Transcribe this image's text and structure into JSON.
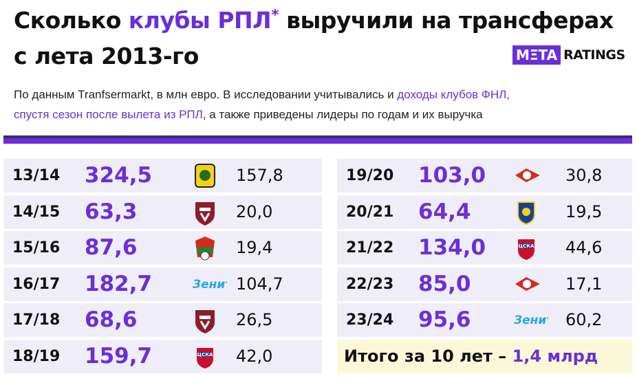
{
  "header": {
    "title_before": "Сколько ",
    "title_highlight": "клубы РПЛ",
    "title_mark": "*",
    "title_after": " выручили на трансферах",
    "title_line2": "с лета 2013-го",
    "brand_a": "MΞTA",
    "brand_b": "RATINGS"
  },
  "subtitle": {
    "before": "По данным Tranfsermarkt, в млн евро. В исследовании учитывались и ",
    "highlight_1": "доходы клубов ФНЛ,",
    "highlight_2": "спустя сезон после вылета из РПЛ",
    "after": ", а также приведены лидеры по годам и их выручка"
  },
  "table": {
    "rows": [
      {
        "season": "13/14",
        "total": "324,5",
        "leader": "157,8"
      },
      {
        "season": "14/15",
        "total": "63,3",
        "leader": "20,0"
      },
      {
        "season": "15/16",
        "total": "87,6",
        "leader": "19,4"
      },
      {
        "season": "16/17",
        "total": "182,7",
        "leader": "104,7"
      },
      {
        "season": "17/18",
        "total": "68,6",
        "leader": "26,5"
      },
      {
        "season": "18/19",
        "total": "159,7",
        "leader": "42,0"
      },
      {
        "season": "19/20",
        "total": "103,0",
        "leader": "30,8"
      },
      {
        "season": "20/21",
        "total": "64,4",
        "leader": "19,5"
      },
      {
        "season": "21/22",
        "total": "134,0",
        "leader": "44,6"
      },
      {
        "season": "22/23",
        "total": "85,0",
        "leader": "17,1"
      },
      {
        "season": "23/24",
        "total": "95,6",
        "leader": "60,2"
      }
    ]
  },
  "summary": {
    "text": "Итого за 10 лет – ",
    "value": "1,4 млрд"
  }
}
